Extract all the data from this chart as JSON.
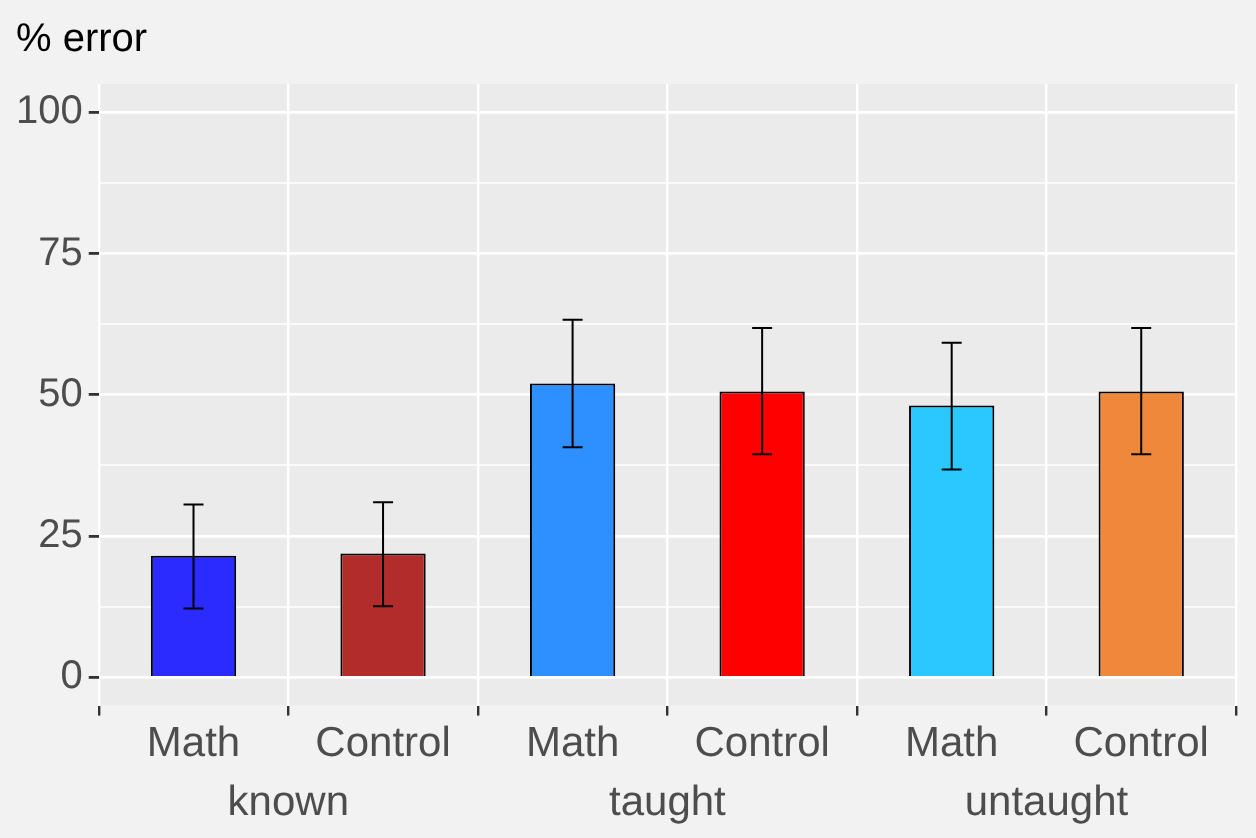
{
  "chart_data": {
    "type": "bar",
    "ylabel": "% error",
    "categories": [
      "Math",
      "Control",
      "Math",
      "Control",
      "Math",
      "Control"
    ],
    "values": [
      21.5,
      21.9,
      52.0,
      50.6,
      48.1,
      50.6
    ],
    "colors": [
      "#2b2bff",
      "#b22c2c",
      "#2e8fff",
      "#ff0000",
      "#2ac8ff",
      "#f0883c"
    ],
    "errors": [
      [
        12.2,
        30.6
      ],
      [
        12.6,
        31.0
      ],
      [
        40.7,
        63.3
      ],
      [
        39.5,
        61.8
      ],
      [
        36.8,
        59.2
      ],
      [
        39.5,
        61.8
      ]
    ],
    "annotations": [
      "known",
      "taught",
      "untaught"
    ],
    "ylim": [
      -5,
      105
    ],
    "yticks": [
      0,
      {
        "value": 12.5,
        "label": null
      },
      25,
      {
        "value": 37.5,
        "label": null
      },
      50,
      {
        "value": 62.5,
        "label": null
      },
      75,
      {
        "value": 87.5,
        "label": null
      },
      100
    ],
    "grid": true
  }
}
